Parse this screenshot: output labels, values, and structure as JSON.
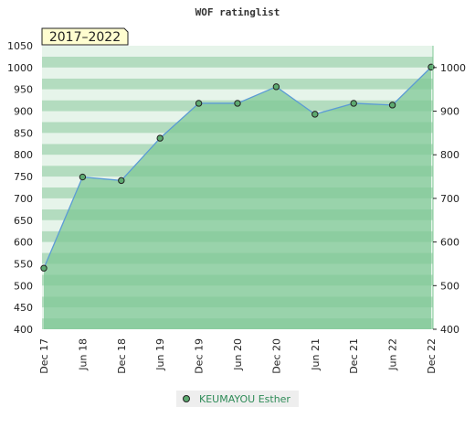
{
  "chart_data": {
    "type": "area",
    "title": "WOF ratinglist",
    "period_badge": "2017–2022",
    "categories": [
      "Dec 17",
      "Jun 18",
      "Dec 18",
      "Jun 19",
      "Dec 19",
      "Jun 20",
      "Dec 20",
      "Jun 21",
      "Dec 21",
      "Jun 22",
      "Dec 22"
    ],
    "series": [
      {
        "name": "KEUMAYOU Esther",
        "values": [
          540,
          749,
          741,
          838,
          918,
          918,
          956,
          893,
          918,
          914,
          1001
        ]
      }
    ],
    "ylim": [
      400,
      1050
    ],
    "left_ticks": [
      400,
      450,
      500,
      550,
      600,
      650,
      700,
      750,
      800,
      850,
      900,
      950,
      1000,
      1050
    ],
    "right_ticks": [
      400,
      500,
      600,
      700,
      800,
      900,
      1000
    ],
    "grid": true,
    "legend_position": "bottom",
    "colors": {
      "line": "#5b9bd5",
      "fill": "#7fc895",
      "marker": "#5daa70",
      "band_dark": "#b3dcbf",
      "band_light": "#e6f4ea",
      "badge_fill": "#fffdd0"
    }
  }
}
